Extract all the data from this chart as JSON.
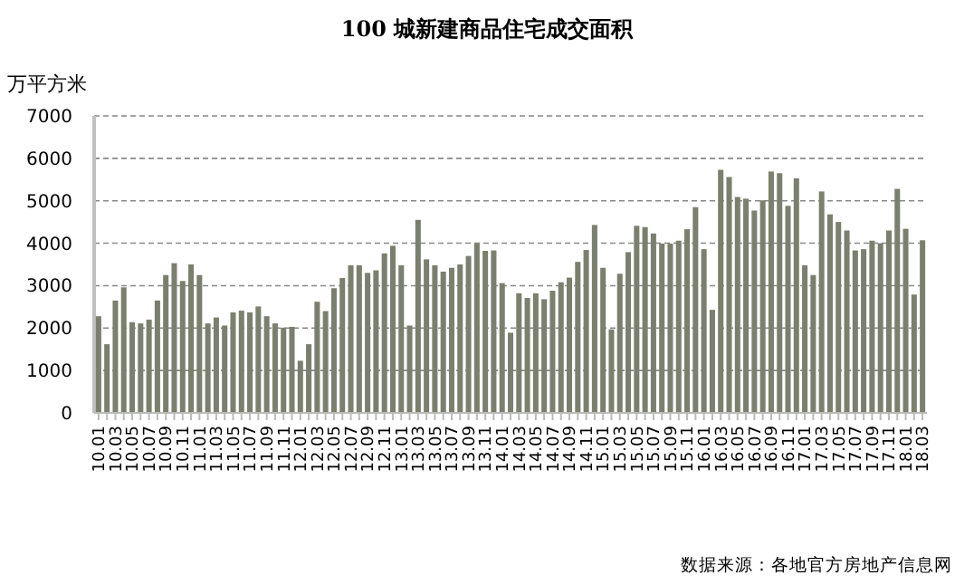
{
  "chart_data": {
    "type": "bar",
    "title": "100 城新建商品住宅成交面积",
    "ylabel": "万平方米",
    "annotations": [
      "数据来源：各地官方房地产信息网"
    ],
    "categories": [
      "10.01",
      null,
      "10.03",
      null,
      "10.05",
      null,
      "10.07",
      null,
      "10.09",
      null,
      "10.11",
      null,
      "11.01",
      null,
      "11.03",
      null,
      "11.05",
      null,
      "11.07",
      null,
      "11.09",
      null,
      "11.11",
      null,
      "12.01",
      null,
      "12.03",
      null,
      "12.05",
      null,
      "12.07",
      null,
      "12.09",
      null,
      "12.11",
      null,
      "13.01",
      null,
      "13.03",
      null,
      "13.05",
      null,
      "13.07",
      null,
      "13.09",
      null,
      "13.11",
      null,
      "14.01",
      null,
      "14.03",
      null,
      "14.05",
      null,
      "14.07",
      null,
      "14.09",
      null,
      "14.11",
      null,
      "15.01",
      null,
      "15.03",
      null,
      "15.05",
      null,
      "15.07",
      null,
      "15.09",
      null,
      "15.11",
      null,
      "16.01",
      null,
      "16.03",
      null,
      "16.05",
      null,
      "16.07",
      null,
      "16.09",
      null,
      "16.11",
      null,
      "17.01",
      null,
      "17.03",
      null,
      "17.05",
      null,
      "17.07",
      null,
      "17.09",
      null,
      "17.11",
      null,
      "18.01",
      null,
      "18.03"
    ],
    "values": [
      2280,
      1620,
      2650,
      2960,
      2140,
      2110,
      2200,
      2650,
      3250,
      3530,
      3110,
      3500,
      3250,
      2110,
      2250,
      2060,
      2370,
      2410,
      2370,
      2510,
      2280,
      2110,
      2010,
      2030,
      1230,
      1620,
      2620,
      2400,
      2940,
      3180,
      3480,
      3480,
      3300,
      3360,
      3760,
      3940,
      3480,
      2060,
      4550,
      3620,
      3480,
      3330,
      3420,
      3500,
      3700,
      3990,
      3820,
      3830,
      3060,
      1890,
      2820,
      2710,
      2820,
      2680,
      2880,
      3080,
      3190,
      3560,
      3840,
      4430,
      3420,
      1970,
      3280,
      3790,
      4410,
      4380,
      4230,
      3990,
      3990,
      4060,
      4330,
      4850,
      3860,
      2430,
      5730,
      5560,
      5090,
      5050,
      4770,
      5010,
      5690,
      5650,
      4880,
      5530,
      3480,
      3250,
      5220,
      4680,
      4500,
      4300,
      3830,
      3860,
      4060,
      4000,
      4300,
      5280,
      4340,
      2790,
      4070
    ],
    "color": "#7b806e",
    "ylim": [
      0,
      7000
    ],
    "yticks": [
      0,
      1000,
      2000,
      3000,
      4000,
      5000,
      6000,
      7000
    ],
    "grid": "y"
  }
}
